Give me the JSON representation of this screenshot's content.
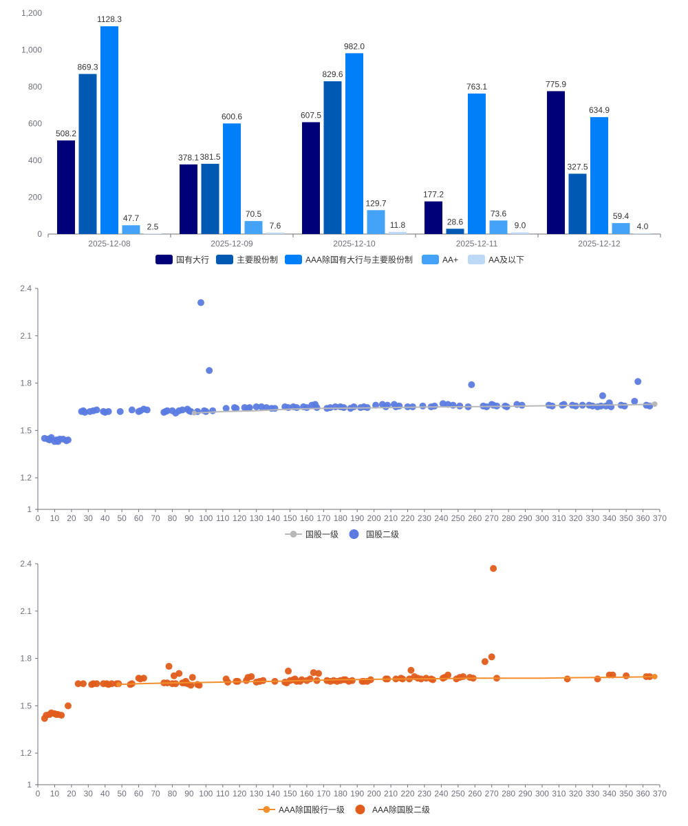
{
  "chart_data": [
    {
      "type": "bar",
      "categories": [
        "2025-12-08",
        "2025-12-09",
        "2025-12-10",
        "2025-12-11",
        "2025-12-12"
      ],
      "ylim": [
        0,
        1200
      ],
      "yticks": [
        "0",
        "200",
        "400",
        "600",
        "800",
        "1,000",
        "1,200"
      ],
      "series": [
        {
          "name": "国有大行",
          "color": "#000078",
          "values": [
            508.2,
            378.1,
            607.5,
            177.2,
            775.9
          ],
          "labels": [
            "508.2",
            "378.1",
            "607.5",
            "177.2",
            "775.9"
          ]
        },
        {
          "name": "主要股份制",
          "color": "#005ab4",
          "values": [
            869.3,
            381.5,
            829.6,
            28.6,
            327.5
          ],
          "labels": [
            "869.3",
            "381.5",
            "829.6",
            "28.6",
            "327.5"
          ]
        },
        {
          "name": "AAA除国有大行与主要股份制",
          "color": "#007ff9",
          "values": [
            1128.3,
            600.6,
            982.0,
            763.1,
            634.9
          ],
          "labels": [
            "1128.3",
            "600.6",
            "982.0",
            "763.1",
            "634.9"
          ]
        },
        {
          "name": "AA+",
          "color": "#44a3f6",
          "values": [
            47.7,
            70.5,
            129.7,
            73.6,
            59.4
          ],
          "labels": [
            "47.7",
            "70.5",
            "129.7",
            "73.6",
            "59.4"
          ]
        },
        {
          "name": "AA及以下",
          "color": "#bed9f5",
          "values": [
            2.5,
            7.6,
            11.8,
            9.0,
            4.0
          ],
          "labels": [
            "2.5",
            "7.6",
            "11.8",
            "9.0",
            "4.0"
          ]
        }
      ]
    },
    {
      "type": "scatter",
      "xlim": [
        0,
        370
      ],
      "ylim": [
        1,
        2.4
      ],
      "xticks": [
        "0",
        "10",
        "20",
        "30",
        "40",
        "50",
        "60",
        "70",
        "80",
        "90",
        "100",
        "110",
        "120",
        "130",
        "140",
        "150",
        "160",
        "170",
        "180",
        "190",
        "200",
        "210",
        "220",
        "230",
        "240",
        "250",
        "260",
        "270",
        "280",
        "290",
        "300",
        "310",
        "320",
        "330",
        "340",
        "350",
        "360",
        "370"
      ],
      "yticks": [
        "1",
        "1.2",
        "1.5",
        "1.8",
        "2.1",
        "2.4"
      ],
      "ytick_values": [
        1,
        1.2,
        1.5,
        1.8,
        2.1,
        2.4
      ],
      "series": [
        {
          "name": "国股一级",
          "kind": "line",
          "color": "#b8b8b8",
          "x": [
            93,
            110,
            130,
            150,
            170,
            190,
            210,
            230,
            250,
            270,
            290,
            310,
            330,
            350,
            367
          ],
          "y": [
            1.61,
            1.62,
            1.625,
            1.635,
            1.64,
            1.642,
            1.645,
            1.648,
            1.65,
            1.652,
            1.655,
            1.658,
            1.66,
            1.662,
            1.667
          ]
        },
        {
          "name": "国股二级",
          "kind": "scatter",
          "color": "#5b7be0",
          "x": [
            4,
            6,
            7,
            8,
            10,
            11,
            12,
            13,
            15,
            17,
            18,
            26,
            27,
            28,
            31,
            33,
            35,
            39,
            40,
            42,
            49,
            56,
            60,
            61,
            63,
            65,
            75,
            76,
            77,
            80,
            82,
            84,
            86,
            89,
            90,
            91,
            95,
            97,
            99,
            100,
            102,
            104,
            112,
            117,
            118,
            123,
            125,
            126,
            130,
            133,
            136,
            139,
            141,
            147,
            149,
            152,
            154,
            158,
            160,
            163,
            165,
            166,
            172,
            174,
            177,
            180,
            182,
            186,
            188,
            192,
            194,
            196,
            201,
            205,
            207,
            208,
            212,
            213,
            215,
            220,
            223,
            229,
            234,
            236,
            241,
            244,
            247,
            251,
            256,
            258,
            265,
            267,
            270,
            271,
            273,
            278,
            279,
            285,
            288,
            304,
            306,
            312,
            313,
            318,
            320,
            324,
            328,
            330,
            333,
            335,
            336,
            338,
            340,
            341,
            347,
            349,
            355,
            357,
            362,
            364
          ],
          "y": [
            1.45,
            1.445,
            1.44,
            1.455,
            1.43,
            1.44,
            1.43,
            1.445,
            1.445,
            1.435,
            1.44,
            1.62,
            1.625,
            1.615,
            1.62,
            1.625,
            1.63,
            1.62,
            1.615,
            1.62,
            1.62,
            1.63,
            1.62,
            1.625,
            1.635,
            1.63,
            1.615,
            1.62,
            1.625,
            1.625,
            1.61,
            1.625,
            1.63,
            1.635,
            1.625,
            1.62,
            1.62,
            2.31,
            1.625,
            1.62,
            1.88,
            1.625,
            1.64,
            1.645,
            1.64,
            1.645,
            1.64,
            1.645,
            1.65,
            1.65,
            1.645,
            1.64,
            1.64,
            1.65,
            1.645,
            1.65,
            1.645,
            1.65,
            1.645,
            1.66,
            1.665,
            1.645,
            1.64,
            1.645,
            1.65,
            1.65,
            1.645,
            1.64,
            1.65,
            1.645,
            1.65,
            1.645,
            1.66,
            1.665,
            1.65,
            1.66,
            1.665,
            1.65,
            1.655,
            1.65,
            1.65,
            1.655,
            1.65,
            1.655,
            1.67,
            1.665,
            1.66,
            1.655,
            1.65,
            1.79,
            1.655,
            1.65,
            1.665,
            1.66,
            1.655,
            1.655,
            1.65,
            1.665,
            1.66,
            1.66,
            1.655,
            1.66,
            1.665,
            1.66,
            1.655,
            1.66,
            1.66,
            1.655,
            1.65,
            1.655,
            1.72,
            1.655,
            1.675,
            1.65,
            1.66,
            1.655,
            1.685,
            1.81,
            1.66,
            1.655
          ]
        }
      ]
    },
    {
      "type": "scatter",
      "xlim": [
        0,
        370
      ],
      "ylim": [
        1,
        2.4
      ],
      "xticks": [
        "0",
        "10",
        "20",
        "30",
        "40",
        "50",
        "60",
        "70",
        "80",
        "90",
        "100",
        "110",
        "120",
        "130",
        "140",
        "150",
        "160",
        "170",
        "180",
        "190",
        "200",
        "210",
        "220",
        "230",
        "240",
        "250",
        "260",
        "270",
        "280",
        "290",
        "300",
        "310",
        "320",
        "330",
        "340",
        "350",
        "360",
        "370"
      ],
      "yticks": [
        "1",
        "1.2",
        "1.5",
        "1.8",
        "2.1",
        "2.4"
      ],
      "ytick_values": [
        1,
        1.2,
        1.5,
        1.8,
        2.1,
        2.4
      ],
      "series": [
        {
          "name": "AAA除国股行一级",
          "kind": "line",
          "color": "#f28e2b",
          "x": [
            48,
            60,
            80,
            100,
            120,
            140,
            160,
            180,
            200,
            220,
            240,
            260,
            277,
            300,
            320,
            340,
            360,
            367
          ],
          "y": [
            1.635,
            1.64,
            1.645,
            1.648,
            1.652,
            1.655,
            1.66,
            1.665,
            1.668,
            1.67,
            1.672,
            1.675,
            1.675,
            1.675,
            1.678,
            1.68,
            1.683,
            1.685
          ]
        },
        {
          "name": "AAA除国股二级",
          "kind": "scatter",
          "color": "#e05d1c",
          "x": [
            4,
            5,
            7,
            8,
            10,
            11,
            12,
            14,
            18,
            24,
            27,
            32,
            33,
            35,
            39,
            41,
            42,
            44,
            47,
            48,
            55,
            56,
            60,
            61,
            63,
            75,
            77,
            78,
            80,
            81,
            82,
            84,
            86,
            87,
            88,
            89,
            91,
            92,
            95,
            96,
            112,
            113,
            118,
            119,
            124,
            125,
            127,
            130,
            132,
            134,
            141,
            147,
            148,
            149,
            150,
            152,
            153,
            154,
            156,
            157,
            160,
            162,
            164,
            166,
            167,
            172,
            174,
            176,
            178,
            180,
            182,
            183,
            185,
            187,
            193,
            194,
            196,
            198,
            207,
            208,
            213,
            216,
            217,
            221,
            222,
            224,
            226,
            228,
            231,
            234,
            235,
            241,
            242,
            244,
            249,
            251,
            253,
            257,
            259,
            266,
            270,
            271,
            273,
            315,
            333,
            340,
            342,
            350,
            362,
            364
          ],
          "y": [
            1.42,
            1.44,
            1.445,
            1.455,
            1.45,
            1.445,
            1.445,
            1.44,
            1.5,
            1.64,
            1.64,
            1.635,
            1.64,
            1.64,
            1.64,
            1.64,
            1.635,
            1.64,
            1.64,
            1.64,
            1.635,
            1.64,
            1.675,
            1.67,
            1.675,
            1.645,
            1.645,
            1.75,
            1.64,
            1.69,
            1.64,
            1.705,
            1.645,
            1.645,
            1.655,
            1.64,
            1.63,
            1.68,
            1.635,
            1.63,
            1.67,
            1.65,
            1.655,
            1.655,
            1.66,
            1.68,
            1.685,
            1.65,
            1.655,
            1.66,
            1.655,
            1.65,
            1.645,
            1.72,
            1.66,
            1.665,
            1.67,
            1.655,
            1.655,
            1.665,
            1.66,
            1.67,
            1.71,
            1.66,
            1.705,
            1.66,
            1.655,
            1.66,
            1.655,
            1.66,
            1.665,
            1.665,
            1.655,
            1.66,
            1.655,
            1.655,
            1.655,
            1.665,
            1.67,
            1.67,
            1.67,
            1.675,
            1.67,
            1.67,
            1.725,
            1.685,
            1.675,
            1.67,
            1.675,
            1.67,
            1.665,
            1.675,
            1.68,
            1.695,
            1.67,
            1.68,
            1.685,
            1.68,
            1.675,
            1.78,
            1.81,
            2.37,
            1.675,
            1.67,
            1.67,
            1.695,
            1.695,
            1.69,
            1.685,
            1.685
          ]
        }
      ]
    }
  ]
}
